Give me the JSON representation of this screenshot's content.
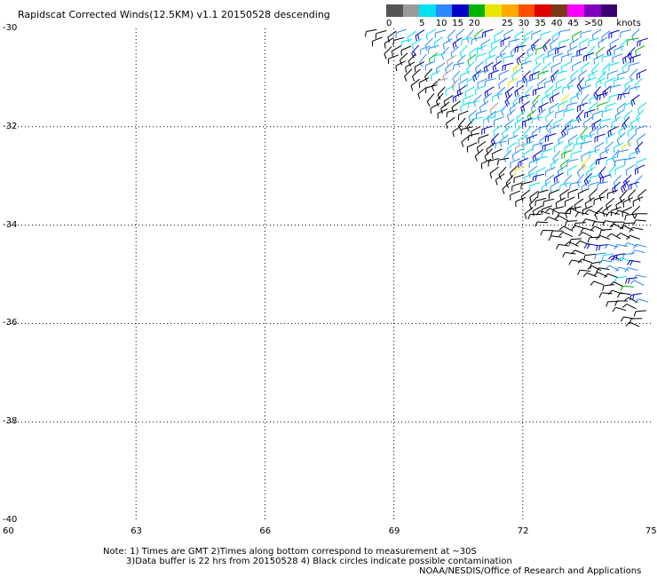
{
  "title": "Rapidscat Corrected Winds(12.5KM) v1.1 20150528 descending",
  "legend": {
    "unit": "knots",
    "bins": [
      {
        "label": "0",
        "color": "#555555"
      },
      {
        "label": "",
        "color": "#9a9a9a"
      },
      {
        "label": "5",
        "color": "#00e0f0"
      },
      {
        "label": "10",
        "color": "#2b88ff"
      },
      {
        "label": "15",
        "color": "#0000c8"
      },
      {
        "label": "20",
        "color": "#00b400"
      },
      {
        "label": "",
        "color": "#e6e600"
      },
      {
        "label": "25",
        "color": "#ffaa00"
      },
      {
        "label": "30",
        "color": "#ff5000"
      },
      {
        "label": "35",
        "color": "#e00000"
      },
      {
        "label": "40",
        "color": "#7a3a1a"
      },
      {
        "label": "45",
        "color": "#ff00ff"
      },
      {
        "label": ">50",
        "color": "#8000c0"
      },
      {
        "label": "",
        "color": "#3a0070"
      }
    ]
  },
  "axes": {
    "lat_ticks": [
      "-30",
      "-32",
      "-34",
      "-36",
      "-38",
      "-40"
    ],
    "lon_ticks": [
      "60",
      "63",
      "66",
      "69",
      "72",
      "75"
    ]
  },
  "notes": {
    "line1": "Note: 1) Times are GMT 2)Times along bottom correspond to measurement at ~30S",
    "line2": "3)Data buffer is 22 hrs from 20150528 4) Black circles indicate possible contamination"
  },
  "credit": "NOAA/NESDIS/Office of Research and Applications"
}
